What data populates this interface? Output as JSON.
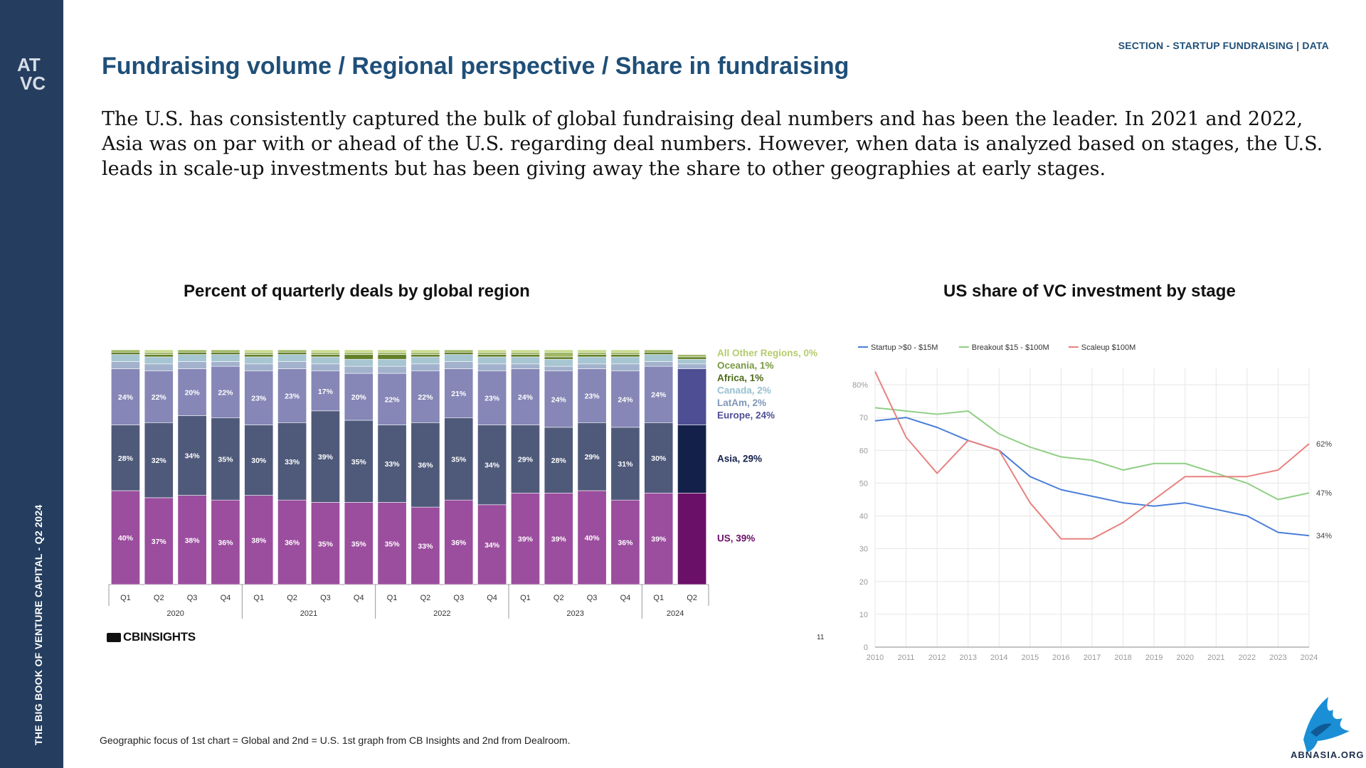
{
  "sidebar": {
    "logo_text": "ATVC",
    "vertical_text": "THE BIG BOOK OF VENTURE CAPITAL - Q2 2024"
  },
  "header": {
    "section_label": "SECTION - STARTUP FUNDRAISING | DATA",
    "title": "Fundraising volume / Regional perspective / Share in fundraising"
  },
  "description": "The U.S. has consistently captured the bulk of global fundraising deal numbers and has been the leader. In 2021 and 2022, Asia was on par with or ahead of the U.S. regarding deal numbers. However, when data is analyzed based on stages, the U.S. leads in scale-up investments but has been giving away the share to other geographies at early stages.",
  "footer": {
    "source_logo": "CBINSIGHTS",
    "page_number": "11",
    "footnote": "Geographic focus of 1st chart = Global and 2nd = U.S. 1st graph from CB Insights and 2nd from Dealroom.",
    "watermark": "ABNASIA.ORG"
  },
  "colors": {
    "sidebar": "#253e5f",
    "title": "#1f4f78",
    "us": "#9b4d9e",
    "us_latest": "#6b1069",
    "asia": "#4f5a7a",
    "asia_latest": "#13214a",
    "europe": "#8687b7",
    "europe_latest": "#4e4e94",
    "latam": "#a2b1cc",
    "canada": "#a7c6d2",
    "africa": "#627f29",
    "oceania": "#a0b866",
    "other": "#c8d98a",
    "startup_line": "#4a7ed9",
    "breakout_line": "#8fcf84",
    "scaleup_line": "#e88280"
  },
  "chart_data": [
    {
      "type": "bar",
      "stacked": true,
      "title": "Percent of quarterly deals by global region",
      "categories": [
        "Q1",
        "Q2",
        "Q3",
        "Q4",
        "Q1",
        "Q2",
        "Q3",
        "Q4",
        "Q1",
        "Q2",
        "Q3",
        "Q4",
        "Q1",
        "Q2",
        "Q3",
        "Q4",
        "Q1",
        "Q2"
      ],
      "year_groups": [
        {
          "label": "2020",
          "count": 4
        },
        {
          "label": "2021",
          "count": 4
        },
        {
          "label": "2022",
          "count": 4
        },
        {
          "label": "2023",
          "count": 4
        },
        {
          "label": "2024",
          "count": 2
        }
      ],
      "ylim": [
        0,
        100
      ],
      "series": [
        {
          "name": "US",
          "values": [
            40,
            37,
            38,
            36,
            38,
            36,
            35,
            35,
            35,
            33,
            36,
            34,
            39,
            39,
            40,
            36,
            39,
            39
          ]
        },
        {
          "name": "Asia",
          "values": [
            28,
            32,
            34,
            35,
            30,
            33,
            39,
            35,
            33,
            36,
            35,
            34,
            29,
            28,
            29,
            31,
            30,
            29
          ]
        },
        {
          "name": "Europe",
          "values": [
            24,
            22,
            20,
            22,
            23,
            23,
            17,
            20,
            22,
            22,
            21,
            23,
            24,
            24,
            23,
            24,
            24,
            24
          ]
        },
        {
          "name": "LatAm",
          "values": [
            3,
            3,
            3,
            2,
            3,
            3,
            3,
            3,
            3,
            3,
            3,
            3,
            2,
            2,
            2,
            3,
            2,
            2
          ]
        },
        {
          "name": "Canada",
          "values": [
            3,
            3,
            3,
            3,
            3,
            3,
            3,
            3,
            3,
            3,
            3,
            3,
            3,
            3,
            3,
            3,
            3,
            2
          ]
        },
        {
          "name": "Africa",
          "values": [
            1,
            1,
            1,
            1,
            1,
            1,
            1,
            2,
            2,
            1,
            1,
            1,
            1,
            1,
            1,
            1,
            1,
            1
          ]
        },
        {
          "name": "Oceania",
          "values": [
            1,
            1,
            1,
            1,
            1,
            1,
            1,
            1,
            1,
            1,
            1,
            1,
            1,
            2,
            1,
            1,
            1,
            1
          ]
        },
        {
          "name": "All Other Regions",
          "values": [
            0,
            1,
            0,
            0,
            1,
            0,
            1,
            1,
            1,
            1,
            0,
            1,
            1,
            1,
            1,
            1,
            0,
            0
          ]
        }
      ],
      "data_label_series": [
        "US",
        "Asia",
        "Europe"
      ],
      "legend": [
        {
          "label": "All Other Regions, 0%",
          "series": "All Other Regions"
        },
        {
          "label": "Oceania, 1%",
          "series": "Oceania"
        },
        {
          "label": "Africa, 1%",
          "series": "Africa"
        },
        {
          "label": "Canada, 2%",
          "series": "Canada"
        },
        {
          "label": "LatAm, 2%",
          "series": "LatAm"
        },
        {
          "label": "Europe, 24%",
          "series": "Europe"
        },
        {
          "label": "Asia, 29%",
          "series": "Asia"
        },
        {
          "label": "US, 39%",
          "series": "US"
        }
      ],
      "legend_placement": "right"
    },
    {
      "type": "line",
      "title": "US share of VC investment by stage",
      "x": [
        2010,
        2011,
        2012,
        2013,
        2014,
        2015,
        2016,
        2017,
        2018,
        2019,
        2020,
        2021,
        2022,
        2023,
        2024
      ],
      "ylim": [
        0,
        85
      ],
      "yticks": [
        "0",
        "10",
        "20",
        "30",
        "40",
        "50",
        "60",
        "70",
        "80%"
      ],
      "grid": true,
      "legend_placement": "top-left",
      "series": [
        {
          "name": "Startup >$0 - $15M",
          "values": [
            69,
            70,
            67,
            63,
            60,
            52,
            48,
            46,
            44,
            43,
            44,
            42,
            40,
            35,
            34
          ],
          "end_label": "34%"
        },
        {
          "name": "Breakout $15 - $100M",
          "values": [
            73,
            72,
            71,
            72,
            65,
            61,
            58,
            57,
            54,
            56,
            56,
            53,
            50,
            45,
            47
          ],
          "end_label": "47%"
        },
        {
          "name": "Scaleup $100M",
          "values": [
            84,
            64,
            53,
            63,
            60,
            44,
            33,
            33,
            38,
            45,
            52,
            52,
            52,
            54,
            62
          ],
          "end_label": "62%"
        }
      ]
    }
  ]
}
